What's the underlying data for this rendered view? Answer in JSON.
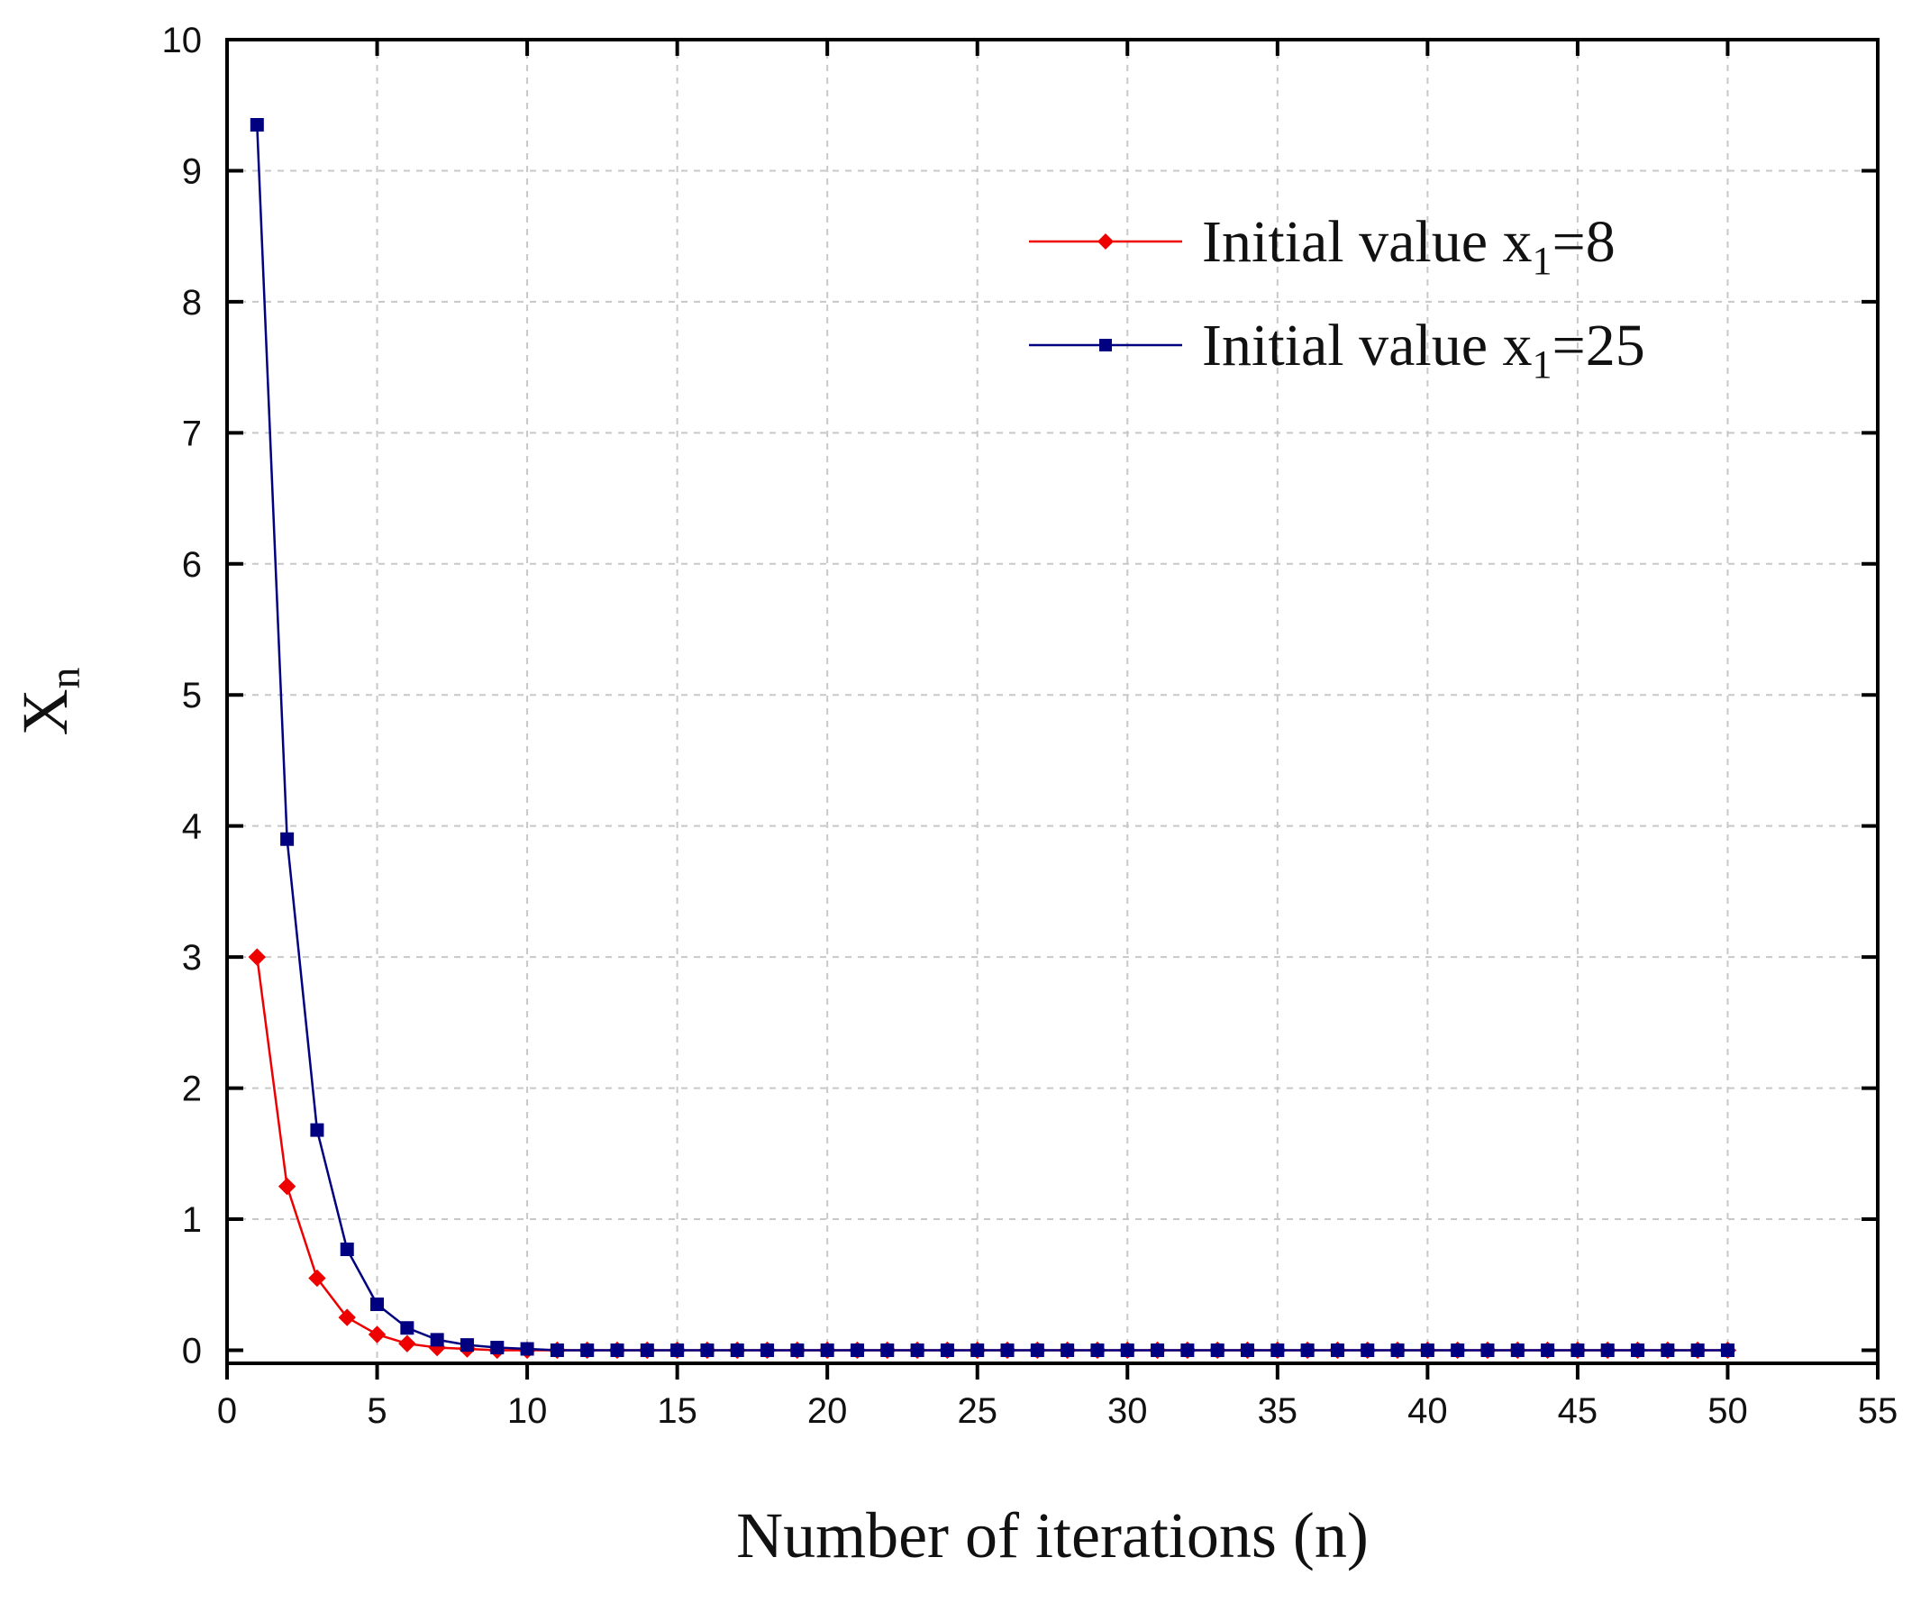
{
  "chart_data": {
    "type": "line",
    "title": "",
    "xlabel": "Number of iterations (n)",
    "ylabel_main": "X",
    "ylabel_sub": "n",
    "xlim": [
      0,
      55
    ],
    "ylim": [
      -0.1,
      10
    ],
    "xticks": [
      0,
      5,
      10,
      15,
      20,
      25,
      30,
      35,
      40,
      45,
      50,
      55
    ],
    "yticks": [
      0,
      1,
      2,
      3,
      4,
      5,
      6,
      7,
      8,
      9,
      10
    ],
    "grid": true,
    "legend_position": "top-right",
    "series": [
      {
        "name_main": "Initial value x",
        "name_sub": "1",
        "name_tail": "=8",
        "color": "#ee0000",
        "marker": "diamond",
        "x": [
          1,
          2,
          3,
          4,
          5,
          6,
          7,
          8,
          9,
          10,
          11,
          12,
          13,
          14,
          15,
          16,
          17,
          18,
          19,
          20,
          21,
          22,
          23,
          24,
          25,
          26,
          27,
          28,
          29,
          30,
          31,
          32,
          33,
          34,
          35,
          36,
          37,
          38,
          39,
          40,
          41,
          42,
          43,
          44,
          45,
          46,
          47,
          48,
          49,
          50
        ],
        "values": [
          3.0,
          1.25,
          0.55,
          0.25,
          0.12,
          0.05,
          0.02,
          0.01,
          0,
          0,
          0,
          0,
          0,
          0,
          0,
          0,
          0,
          0,
          0,
          0,
          0,
          0,
          0,
          0,
          0,
          0,
          0,
          0,
          0,
          0,
          0,
          0,
          0,
          0,
          0,
          0,
          0,
          0,
          0,
          0,
          0,
          0,
          0,
          0,
          0,
          0,
          0,
          0,
          0,
          0
        ]
      },
      {
        "name_main": "Initial value x",
        "name_sub": "1",
        "name_tail": "=25",
        "color": "#000080",
        "marker": "square",
        "x": [
          1,
          2,
          3,
          4,
          5,
          6,
          7,
          8,
          9,
          10,
          11,
          12,
          13,
          14,
          15,
          16,
          17,
          18,
          19,
          20,
          21,
          22,
          23,
          24,
          25,
          26,
          27,
          28,
          29,
          30,
          31,
          32,
          33,
          34,
          35,
          36,
          37,
          38,
          39,
          40,
          41,
          42,
          43,
          44,
          45,
          46,
          47,
          48,
          49,
          50
        ],
        "values": [
          9.35,
          3.9,
          1.68,
          0.77,
          0.35,
          0.17,
          0.08,
          0.04,
          0.02,
          0.01,
          0,
          0,
          0,
          0,
          0,
          0,
          0,
          0,
          0,
          0,
          0,
          0,
          0,
          0,
          0,
          0,
          0,
          0,
          0,
          0,
          0,
          0,
          0,
          0,
          0,
          0,
          0,
          0,
          0,
          0,
          0,
          0,
          0,
          0,
          0,
          0,
          0,
          0,
          0,
          0
        ]
      }
    ]
  }
}
